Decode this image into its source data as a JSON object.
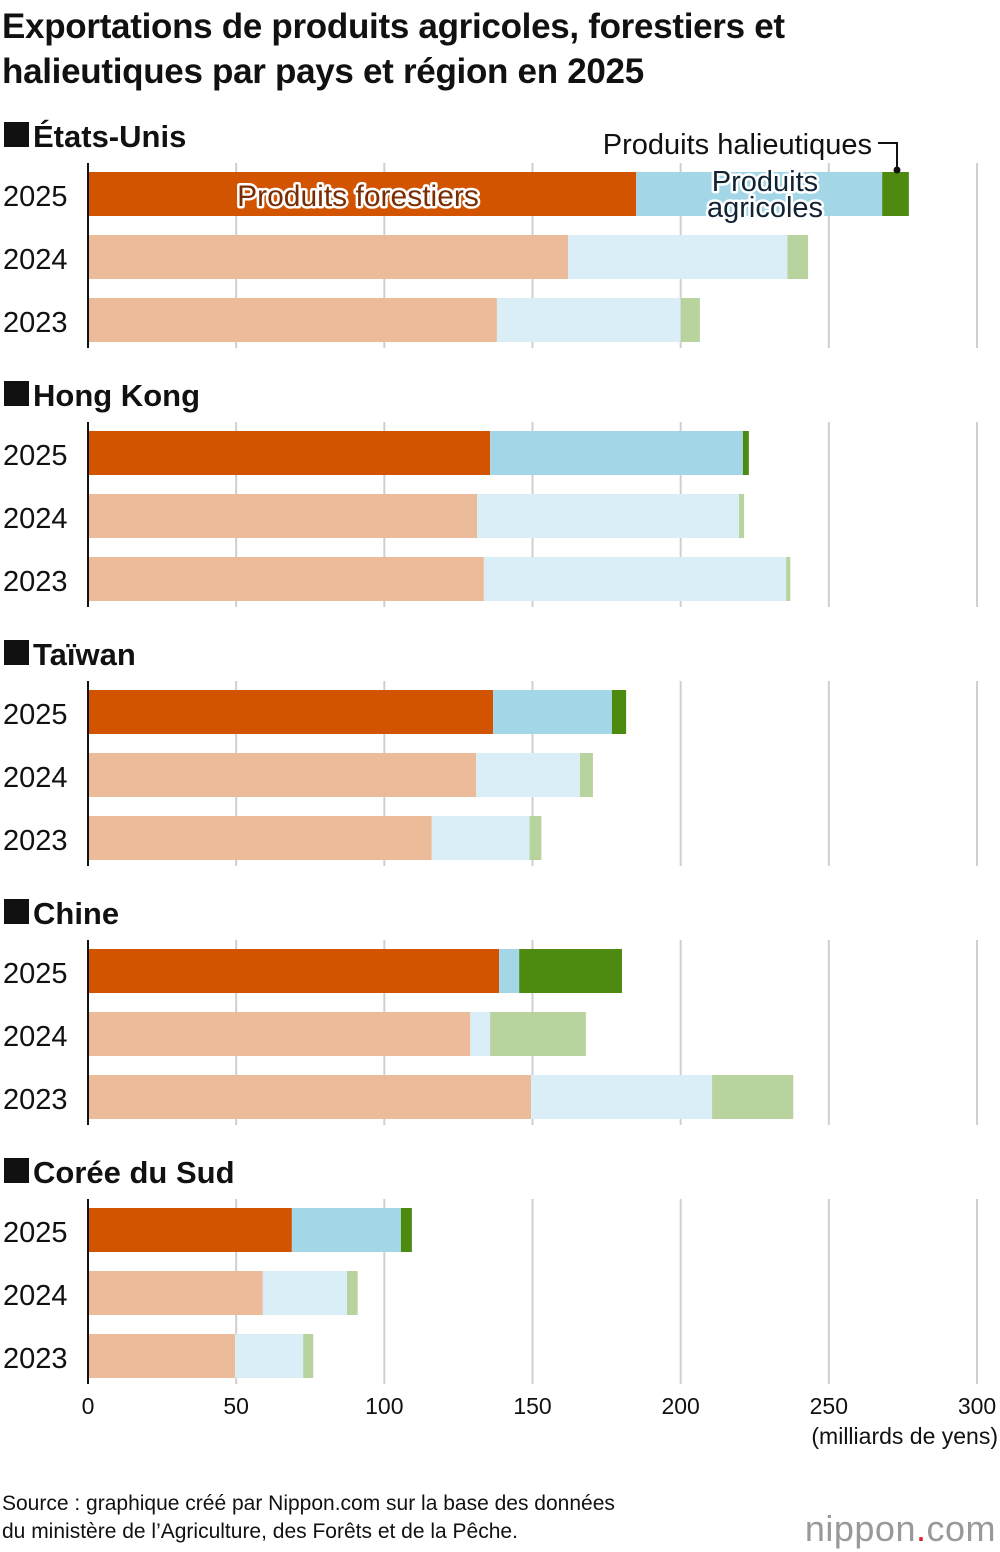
{
  "title_line1": "Exportations de produits agricoles, forestiers et",
  "title_line2": "halieutiques par pays et région en 2025",
  "source_line1": "Source : graphique créé par Nippon.com sur la base des données",
  "source_line2": "du ministère de l’Agriculture, des Forêts et de la Pêche.",
  "logo": {
    "name": "nippon",
    "dot": ".",
    "suffix": "com"
  },
  "chart_data": {
    "type": "bar",
    "orientation": "horizontal",
    "stacked": true,
    "xlabel": "(milliards de yens)",
    "xlim": [
      0,
      300
    ],
    "xticks": [
      "0",
      "50",
      "100",
      "150",
      "200",
      "250",
      "300"
    ],
    "grid": true,
    "segment_labels": [
      "Produits forestiers",
      "Produits agricoles",
      "Produits halieutiques"
    ],
    "colors": {
      "current": [
        "#d35400",
        "#a3d7e8",
        "#4e8a10"
      ],
      "past": [
        "#ecbb9a",
        "#d9eef6",
        "#b9d39e"
      ]
    },
    "groups": [
      {
        "name": "États-Unis",
        "rows": [
          {
            "year": "2025",
            "values": [
              185,
              83,
              9
            ]
          },
          {
            "year": "2024",
            "values": [
              162,
              74,
              7
            ]
          },
          {
            "year": "2023",
            "values": [
              138,
              62,
              6.5
            ]
          }
        ]
      },
      {
        "name": "Hong Kong",
        "rows": [
          {
            "year": "2025",
            "values": [
              135.7,
              85.3,
              2
            ]
          },
          {
            "year": "2024",
            "values": [
              131.3,
              88.4,
              1.7
            ]
          },
          {
            "year": "2023",
            "values": [
              133.6,
              102,
              1.4
            ]
          }
        ]
      },
      {
        "name": "Taïwan",
        "rows": [
          {
            "year": "2025",
            "values": [
              136.7,
              40.1,
              4.8
            ]
          },
          {
            "year": "2024",
            "values": [
              131,
              35,
              4.4
            ]
          },
          {
            "year": "2023",
            "values": [
              116,
              33,
              4
            ]
          }
        ]
      },
      {
        "name": "Chine",
        "rows": [
          {
            "year": "2025",
            "values": [
              138.7,
              6.8,
              34.7
            ]
          },
          {
            "year": "2024",
            "values": [
              129,
              6.7,
              32.3
            ]
          },
          {
            "year": "2023",
            "values": [
              149.5,
              61.1,
              27.4
            ]
          }
        ]
      },
      {
        "name": "Corée du Sud",
        "rows": [
          {
            "year": "2025",
            "values": [
              68.8,
              36.8,
              3.7
            ]
          },
          {
            "year": "2024",
            "values": [
              59,
              28.4,
              3.6
            ]
          },
          {
            "year": "2023",
            "values": [
              49.6,
              23,
              3.4
            ]
          }
        ]
      }
    ],
    "annotations": {
      "forest": "Produits forestiers",
      "agri_1": "Produits",
      "agri_2": "agricoles",
      "fish": "Produits halieutiques"
    }
  }
}
